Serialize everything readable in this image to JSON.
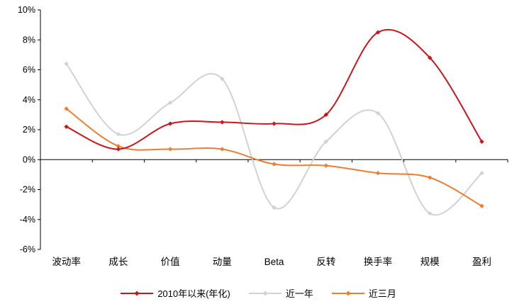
{
  "chart_data": {
    "type": "line",
    "smooth": true,
    "grid": false,
    "legend_position": "bottom",
    "title": "",
    "xlabel": "",
    "ylabel": "",
    "categories": [
      "波动率",
      "成长",
      "价值",
      "动量",
      "Beta",
      "反转",
      "换手率",
      "规模",
      "盈利"
    ],
    "series": [
      {
        "name": "2010年以来(年化)",
        "color": "#c9161d",
        "values": [
          2.2,
          0.7,
          2.4,
          2.5,
          2.4,
          3.0,
          8.5,
          6.8,
          1.2
        ]
      },
      {
        "name": "近一年",
        "color": "#d2d2d2",
        "values": [
          6.4,
          1.7,
          3.8,
          5.4,
          -3.2,
          1.2,
          3.1,
          -3.6,
          -0.9
        ]
      },
      {
        "name": "近三月",
        "color": "#ed7d31",
        "values": [
          3.4,
          0.9,
          0.7,
          0.7,
          -0.3,
          -0.4,
          -0.9,
          -1.2,
          -3.1
        ]
      }
    ],
    "ylim": [
      -6,
      10
    ],
    "ytick_step": 2,
    "yticks": [
      "10%",
      "8%",
      "6%",
      "4%",
      "2%",
      "0%",
      "-2%",
      "-4%",
      "-6%"
    ],
    "axis_color": "#000000"
  }
}
